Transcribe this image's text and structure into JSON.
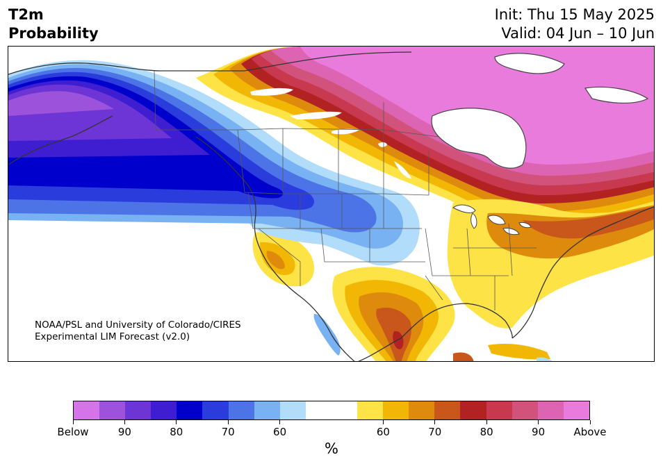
{
  "header": {
    "title_line1": "T2m",
    "title_line2": "Probability",
    "init": "Init: Thu 15 May 2025",
    "valid": "Valid: 04 Jun – 10 Jun"
  },
  "credit": {
    "line1": "NOAA/PSL and University of Colorado/CIRES",
    "line2": "Experimental LIM Forecast (v2.0)"
  },
  "colorbar": {
    "units": "%",
    "below_colors": [
      "#d573e8",
      "#9d52dc",
      "#6d35d6",
      "#3f1ed2",
      "#0000cc",
      "#2a3ddc",
      "#4d74e6",
      "#79b2f2",
      "#b1ddfb"
    ],
    "neutral_color": "#ffffff",
    "above_colors": [
      "#fde345",
      "#f2b705",
      "#de8a0c",
      "#c9561a",
      "#b22222",
      "#c8394f",
      "#d1537c",
      "#dc64b2",
      "#e87bdc"
    ],
    "tick_labels": [
      "Below",
      "90",
      "80",
      "70",
      "60",
      "60",
      "70",
      "80",
      "90",
      "Above"
    ]
  }
}
